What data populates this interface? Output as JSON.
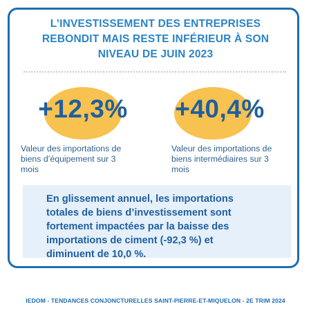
{
  "title_lines": [
    "L’INVESTISSEMENT DES ENTREPRISES",
    "REBONDIT MAIS RESTE INFÉRIEUR À SON",
    "NIVEAU DE JUIN 2023"
  ],
  "stats": [
    {
      "value": "+12,3%",
      "label_lines": [
        "Valeur des importations de",
        "biens d’équipement sur 3",
        "mois"
      ]
    },
    {
      "value": "+40,4%",
      "label_lines": [
        "Valeur des importations de",
        "biens intermédiaires sur 3",
        "mois"
      ]
    }
  ],
  "note_lines": [
    "En glissement annuel, les importations",
    "totales de biens d’investissement sont",
    "fortement impactées par la baisse des",
    "importations de ciment (-92,3 %) et",
    "diminuent de 10,0 %."
  ],
  "footer": "IEDOM - TENDANCES CONJONCTURELLES SAINT-PIERRE-ET-MIQUELON - 2E TRIM 2024",
  "colors": {
    "border": "#1d6cb3",
    "title": "#2a84c6",
    "highlight": "#f7c24f",
    "note_background": "#e6f0fa",
    "text_dark_blue": "#1f5fa0"
  }
}
